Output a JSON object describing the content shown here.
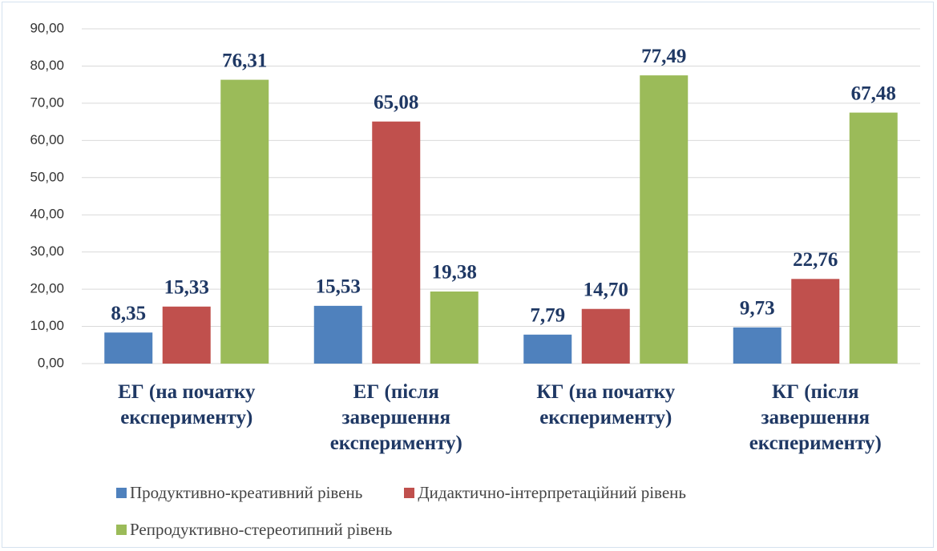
{
  "chart_data": {
    "type": "bar",
    "categories": [
      "ЕГ (на початку експерименту)",
      "ЕГ (після завершення експерименту)",
      "КГ (на початку експерименту)",
      "КГ (після завершення експерименту)"
    ],
    "series": [
      {
        "name": "Продуктивно-креативний рівень",
        "color": "#4f81bd",
        "values": [
          8.35,
          15.53,
          7.79,
          9.73
        ],
        "value_labels": [
          "8,35",
          "15,53",
          "7,79",
          "9,73"
        ]
      },
      {
        "name": "Дидактично-інтерпретаційний рівень",
        "color": "#c0504d",
        "values": [
          15.33,
          65.08,
          14.7,
          22.76
        ],
        "value_labels": [
          "15,33",
          "65,08",
          "14,70",
          "22,76"
        ]
      },
      {
        "name": "Репродуктивно-стереотипний рівень",
        "color": "#9bbb59",
        "values": [
          76.31,
          19.38,
          77.49,
          67.48
        ],
        "value_labels": [
          "76,31",
          "19,38",
          "77,49",
          "67,48"
        ]
      }
    ],
    "ylim": [
      0,
      90
    ],
    "yticks": [
      {
        "value": 0,
        "label": "0,00"
      },
      {
        "value": 10,
        "label": "10,00"
      },
      {
        "value": 20,
        "label": "20,00"
      },
      {
        "value": 30,
        "label": "30,00"
      },
      {
        "value": 40,
        "label": "40,00"
      },
      {
        "value": 50,
        "label": "50,00"
      },
      {
        "value": 60,
        "label": "60,00"
      },
      {
        "value": 70,
        "label": "70,00"
      },
      {
        "value": 80,
        "label": "80,00"
      },
      {
        "value": 90,
        "label": "90,00"
      }
    ],
    "grid": true,
    "legend": "bottom"
  }
}
